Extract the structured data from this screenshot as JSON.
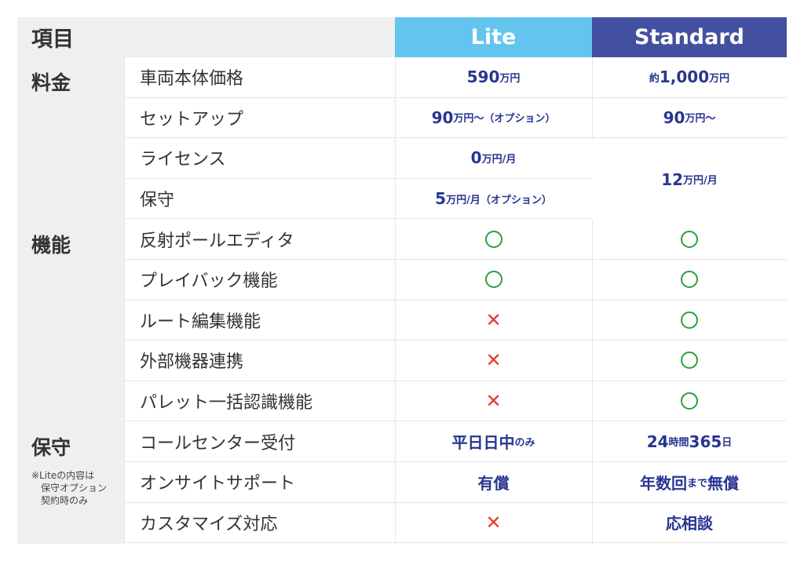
{
  "header": {
    "item": "項目",
    "lite": "Lite",
    "standard": "Standard"
  },
  "categories": {
    "pricing": "料金",
    "features": "機能",
    "maintenance": "保守"
  },
  "note": [
    "※Liteの内容は",
    "保守オプション",
    "契約時のみ"
  ],
  "rows": [
    {
      "label": "車両本体価格",
      "lite": {
        "main": "590",
        "unit": "万円",
        "pre": "",
        "post": ""
      },
      "standard": {
        "pre": "約",
        "main": "1,000",
        "unit": "万円",
        "post": ""
      }
    },
    {
      "label": "セットアップ",
      "lite": {
        "pre": "",
        "main": "90",
        "unit": "万円〜（オプション）",
        "post": ""
      },
      "standard": {
        "pre": "",
        "main": "90",
        "unit": "万円〜",
        "post": ""
      }
    },
    {
      "label": "ライセンス",
      "lite": {
        "pre": "",
        "main": "0",
        "unit": "万円/月",
        "post": ""
      }
    },
    {
      "label": "保守",
      "lite": {
        "pre": "",
        "main": "5",
        "unit": "万円/月（オプション）",
        "post": ""
      }
    },
    {
      "label": "反射ポールエディタ",
      "lite": "circle",
      "standard": "circle"
    },
    {
      "label": "プレイバック機能",
      "lite": "circle",
      "standard": "circle"
    },
    {
      "label": "ルート編集機能",
      "lite": "cross",
      "standard": "circle"
    },
    {
      "label": "外部機器連携",
      "lite": "cross",
      "standard": "circle"
    },
    {
      "label": "パレット一括認識機能",
      "lite": "cross",
      "standard": "circle"
    },
    {
      "label": "コールセンター受付",
      "lite": {
        "pre": "",
        "main": "平日日中",
        "unit": "のみ",
        "post": ""
      },
      "standard": {
        "pre": "",
        "main": "24",
        "unit": "時間",
        "post": "365",
        "post_unit": "日"
      }
    },
    {
      "label": "オンサイトサポート",
      "lite": {
        "pre": "",
        "main": "有償",
        "unit": "",
        "post": ""
      },
      "standard": {
        "pre": "",
        "main": "年数回",
        "unit": "まで",
        "post": "無償"
      }
    },
    {
      "label": "カスタマイズ対応",
      "lite": "cross",
      "standard": {
        "pre": "",
        "main": "応相談",
        "unit": "",
        "post": ""
      }
    }
  ],
  "merged_standard": {
    "main": "12",
    "unit": "万円/月"
  },
  "symbols": {
    "cross": "✕"
  },
  "colors": {
    "lite": "#63c5ee",
    "standard": "#434f9f",
    "value": "#283593",
    "circle": "#2e9e3e",
    "cross": "#e53935"
  }
}
